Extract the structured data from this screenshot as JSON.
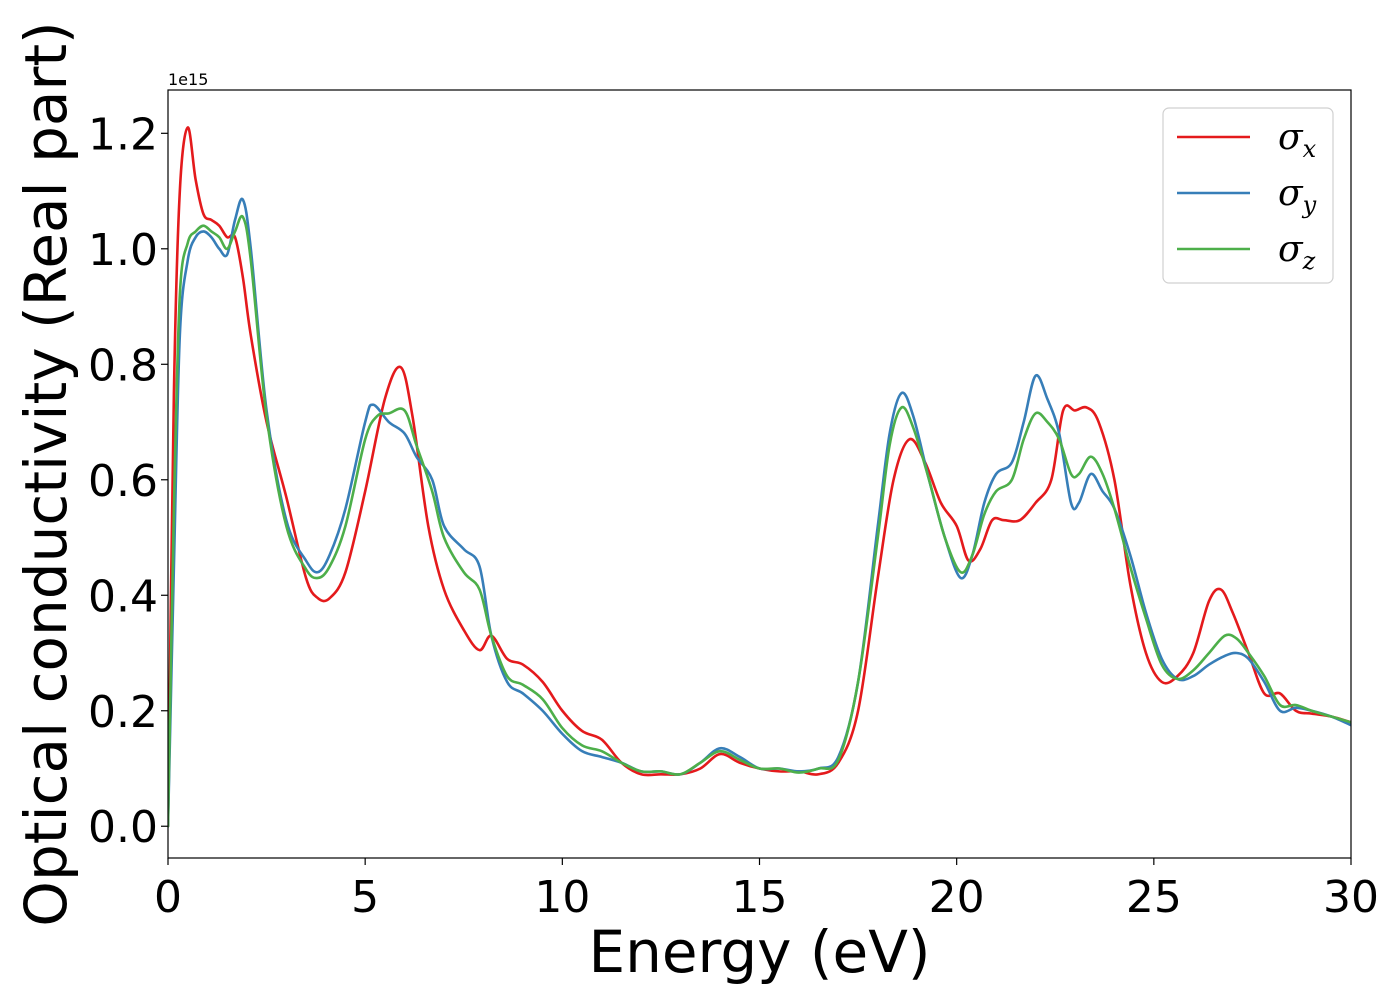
{
  "chart_data": {
    "type": "line",
    "title": "",
    "xlabel": "Energy (eV)",
    "ylabel": "Optical conductivity (Real part)",
    "y_offset_label": "1e15",
    "xlim": [
      0,
      30
    ],
    "ylim": [
      -0.055,
      1.275
    ],
    "x_ticks": [
      0,
      5,
      10,
      15,
      20,
      25,
      30
    ],
    "x_tick_labels": [
      "0",
      "5",
      "10",
      "15",
      "20",
      "25",
      "30"
    ],
    "y_ticks": [
      0.0,
      0.2,
      0.4,
      0.6,
      0.8,
      1.0,
      1.2
    ],
    "y_tick_labels": [
      "0.0",
      "0.2",
      "0.4",
      "0.6",
      "0.8",
      "1.0",
      "1.2"
    ],
    "grid": false,
    "legend_position": "top-right",
    "series": [
      {
        "name": "σx",
        "symbol": "σ",
        "subscript": "x",
        "color": "#e41a1c",
        "x": [
          0,
          0.15,
          0.3,
          0.5,
          0.7,
          0.9,
          1.1,
          1.3,
          1.5,
          1.7,
          1.9,
          2.1,
          2.5,
          3.0,
          3.5,
          3.8,
          4.1,
          4.5,
          5.0,
          5.5,
          5.9,
          6.2,
          6.6,
          7.0,
          7.5,
          7.9,
          8.2,
          8.6,
          9.0,
          9.5,
          10.0,
          10.5,
          11.0,
          11.5,
          12.0,
          12.5,
          13.0,
          13.5,
          14.0,
          14.5,
          15.0,
          15.5,
          16.0,
          16.5,
          17.0,
          17.5,
          18.0,
          18.4,
          18.8,
          19.2,
          19.6,
          20.0,
          20.3,
          20.6,
          20.9,
          21.2,
          21.6,
          22.0,
          22.4,
          22.7,
          23.0,
          23.3,
          23.6,
          24.0,
          24.4,
          24.8,
          25.2,
          25.6,
          26.0,
          26.4,
          26.7,
          27.0,
          27.4,
          27.8,
          28.2,
          28.6,
          29.0,
          29.5,
          30.0
        ],
        "values": [
          0.0,
          0.75,
          1.1,
          1.21,
          1.12,
          1.06,
          1.05,
          1.04,
          1.02,
          1.02,
          0.95,
          0.85,
          0.7,
          0.57,
          0.43,
          0.395,
          0.395,
          0.44,
          0.58,
          0.74,
          0.795,
          0.71,
          0.52,
          0.41,
          0.34,
          0.305,
          0.33,
          0.29,
          0.28,
          0.25,
          0.2,
          0.165,
          0.15,
          0.11,
          0.09,
          0.09,
          0.09,
          0.1,
          0.125,
          0.11,
          0.1,
          0.095,
          0.095,
          0.09,
          0.11,
          0.2,
          0.43,
          0.6,
          0.67,
          0.63,
          0.56,
          0.52,
          0.46,
          0.48,
          0.53,
          0.53,
          0.53,
          0.56,
          0.6,
          0.72,
          0.72,
          0.725,
          0.7,
          0.6,
          0.42,
          0.3,
          0.25,
          0.26,
          0.3,
          0.39,
          0.41,
          0.37,
          0.3,
          0.23,
          0.23,
          0.2,
          0.195,
          0.19,
          0.18
        ]
      },
      {
        "name": "σy",
        "symbol": "σ",
        "subscript": "y",
        "color": "#377eb8",
        "x": [
          0,
          0.15,
          0.3,
          0.5,
          0.7,
          0.9,
          1.1,
          1.3,
          1.5,
          1.7,
          1.9,
          2.1,
          2.5,
          3.0,
          3.5,
          3.8,
          4.1,
          4.5,
          5.0,
          5.2,
          5.6,
          6.0,
          6.3,
          6.7,
          7.0,
          7.5,
          7.9,
          8.2,
          8.6,
          9.0,
          9.5,
          10.0,
          10.5,
          11.0,
          11.5,
          12.0,
          12.5,
          13.0,
          13.5,
          14.0,
          14.5,
          15.0,
          15.5,
          16.0,
          16.5,
          17.0,
          17.5,
          18.0,
          18.3,
          18.6,
          18.9,
          19.3,
          19.7,
          20.1,
          20.4,
          20.7,
          21.0,
          21.4,
          21.7,
          22.0,
          22.3,
          22.6,
          22.9,
          23.1,
          23.4,
          23.7,
          24.0,
          24.4,
          24.8,
          25.2,
          25.6,
          26.0,
          26.4,
          26.8,
          27.1,
          27.4,
          27.8,
          28.2,
          28.6,
          29.0,
          29.5,
          30.0
        ],
        "values": [
          0.0,
          0.45,
          0.85,
          0.98,
          1.02,
          1.03,
          1.02,
          1.0,
          0.99,
          1.05,
          1.085,
          1.0,
          0.72,
          0.53,
          0.46,
          0.44,
          0.47,
          0.55,
          0.7,
          0.73,
          0.7,
          0.68,
          0.64,
          0.6,
          0.52,
          0.48,
          0.45,
          0.33,
          0.25,
          0.23,
          0.2,
          0.16,
          0.13,
          0.12,
          0.11,
          0.095,
          0.095,
          0.09,
          0.11,
          0.135,
          0.12,
          0.1,
          0.1,
          0.095,
          0.1,
          0.12,
          0.25,
          0.52,
          0.68,
          0.75,
          0.71,
          0.6,
          0.5,
          0.43,
          0.47,
          0.56,
          0.61,
          0.63,
          0.7,
          0.78,
          0.74,
          0.68,
          0.56,
          0.56,
          0.61,
          0.58,
          0.55,
          0.47,
          0.37,
          0.29,
          0.255,
          0.26,
          0.28,
          0.295,
          0.3,
          0.29,
          0.25,
          0.2,
          0.205,
          0.2,
          0.19,
          0.175
        ]
      },
      {
        "name": "σz",
        "symbol": "σ",
        "subscript": "z",
        "color": "#4daf4a",
        "x": [
          0,
          0.15,
          0.3,
          0.5,
          0.7,
          0.9,
          1.1,
          1.3,
          1.5,
          1.7,
          1.9,
          2.1,
          2.5,
          3.0,
          3.5,
          3.8,
          4.1,
          4.5,
          5.0,
          5.3,
          5.6,
          6.0,
          6.3,
          6.7,
          7.0,
          7.5,
          7.9,
          8.2,
          8.6,
          9.0,
          9.5,
          10.0,
          10.5,
          11.0,
          11.5,
          12.0,
          12.5,
          13.0,
          13.5,
          14.0,
          14.5,
          15.0,
          15.5,
          16.0,
          16.5,
          17.0,
          17.5,
          18.0,
          18.3,
          18.6,
          18.9,
          19.3,
          19.7,
          20.1,
          20.4,
          20.7,
          21.0,
          21.4,
          21.7,
          22.0,
          22.3,
          22.6,
          22.9,
          23.1,
          23.4,
          23.7,
          24.0,
          24.4,
          24.8,
          25.2,
          25.6,
          26.0,
          26.4,
          26.8,
          27.1,
          27.4,
          27.8,
          28.2,
          28.6,
          29.0,
          29.5,
          30.0
        ],
        "values": [
          0.0,
          0.55,
          0.92,
          1.01,
          1.03,
          1.04,
          1.03,
          1.02,
          1.0,
          1.03,
          1.055,
          0.98,
          0.71,
          0.52,
          0.445,
          0.43,
          0.45,
          0.52,
          0.67,
          0.71,
          0.715,
          0.72,
          0.66,
          0.58,
          0.5,
          0.44,
          0.41,
          0.33,
          0.26,
          0.245,
          0.22,
          0.17,
          0.14,
          0.13,
          0.11,
          0.095,
          0.095,
          0.09,
          0.11,
          0.13,
          0.115,
          0.1,
          0.1,
          0.093,
          0.1,
          0.115,
          0.25,
          0.5,
          0.66,
          0.725,
          0.69,
          0.6,
          0.5,
          0.44,
          0.47,
          0.54,
          0.58,
          0.6,
          0.67,
          0.715,
          0.7,
          0.67,
          0.61,
          0.61,
          0.64,
          0.61,
          0.55,
          0.45,
          0.36,
          0.28,
          0.255,
          0.27,
          0.3,
          0.33,
          0.325,
          0.3,
          0.26,
          0.21,
          0.21,
          0.2,
          0.19,
          0.18
        ]
      }
    ]
  }
}
